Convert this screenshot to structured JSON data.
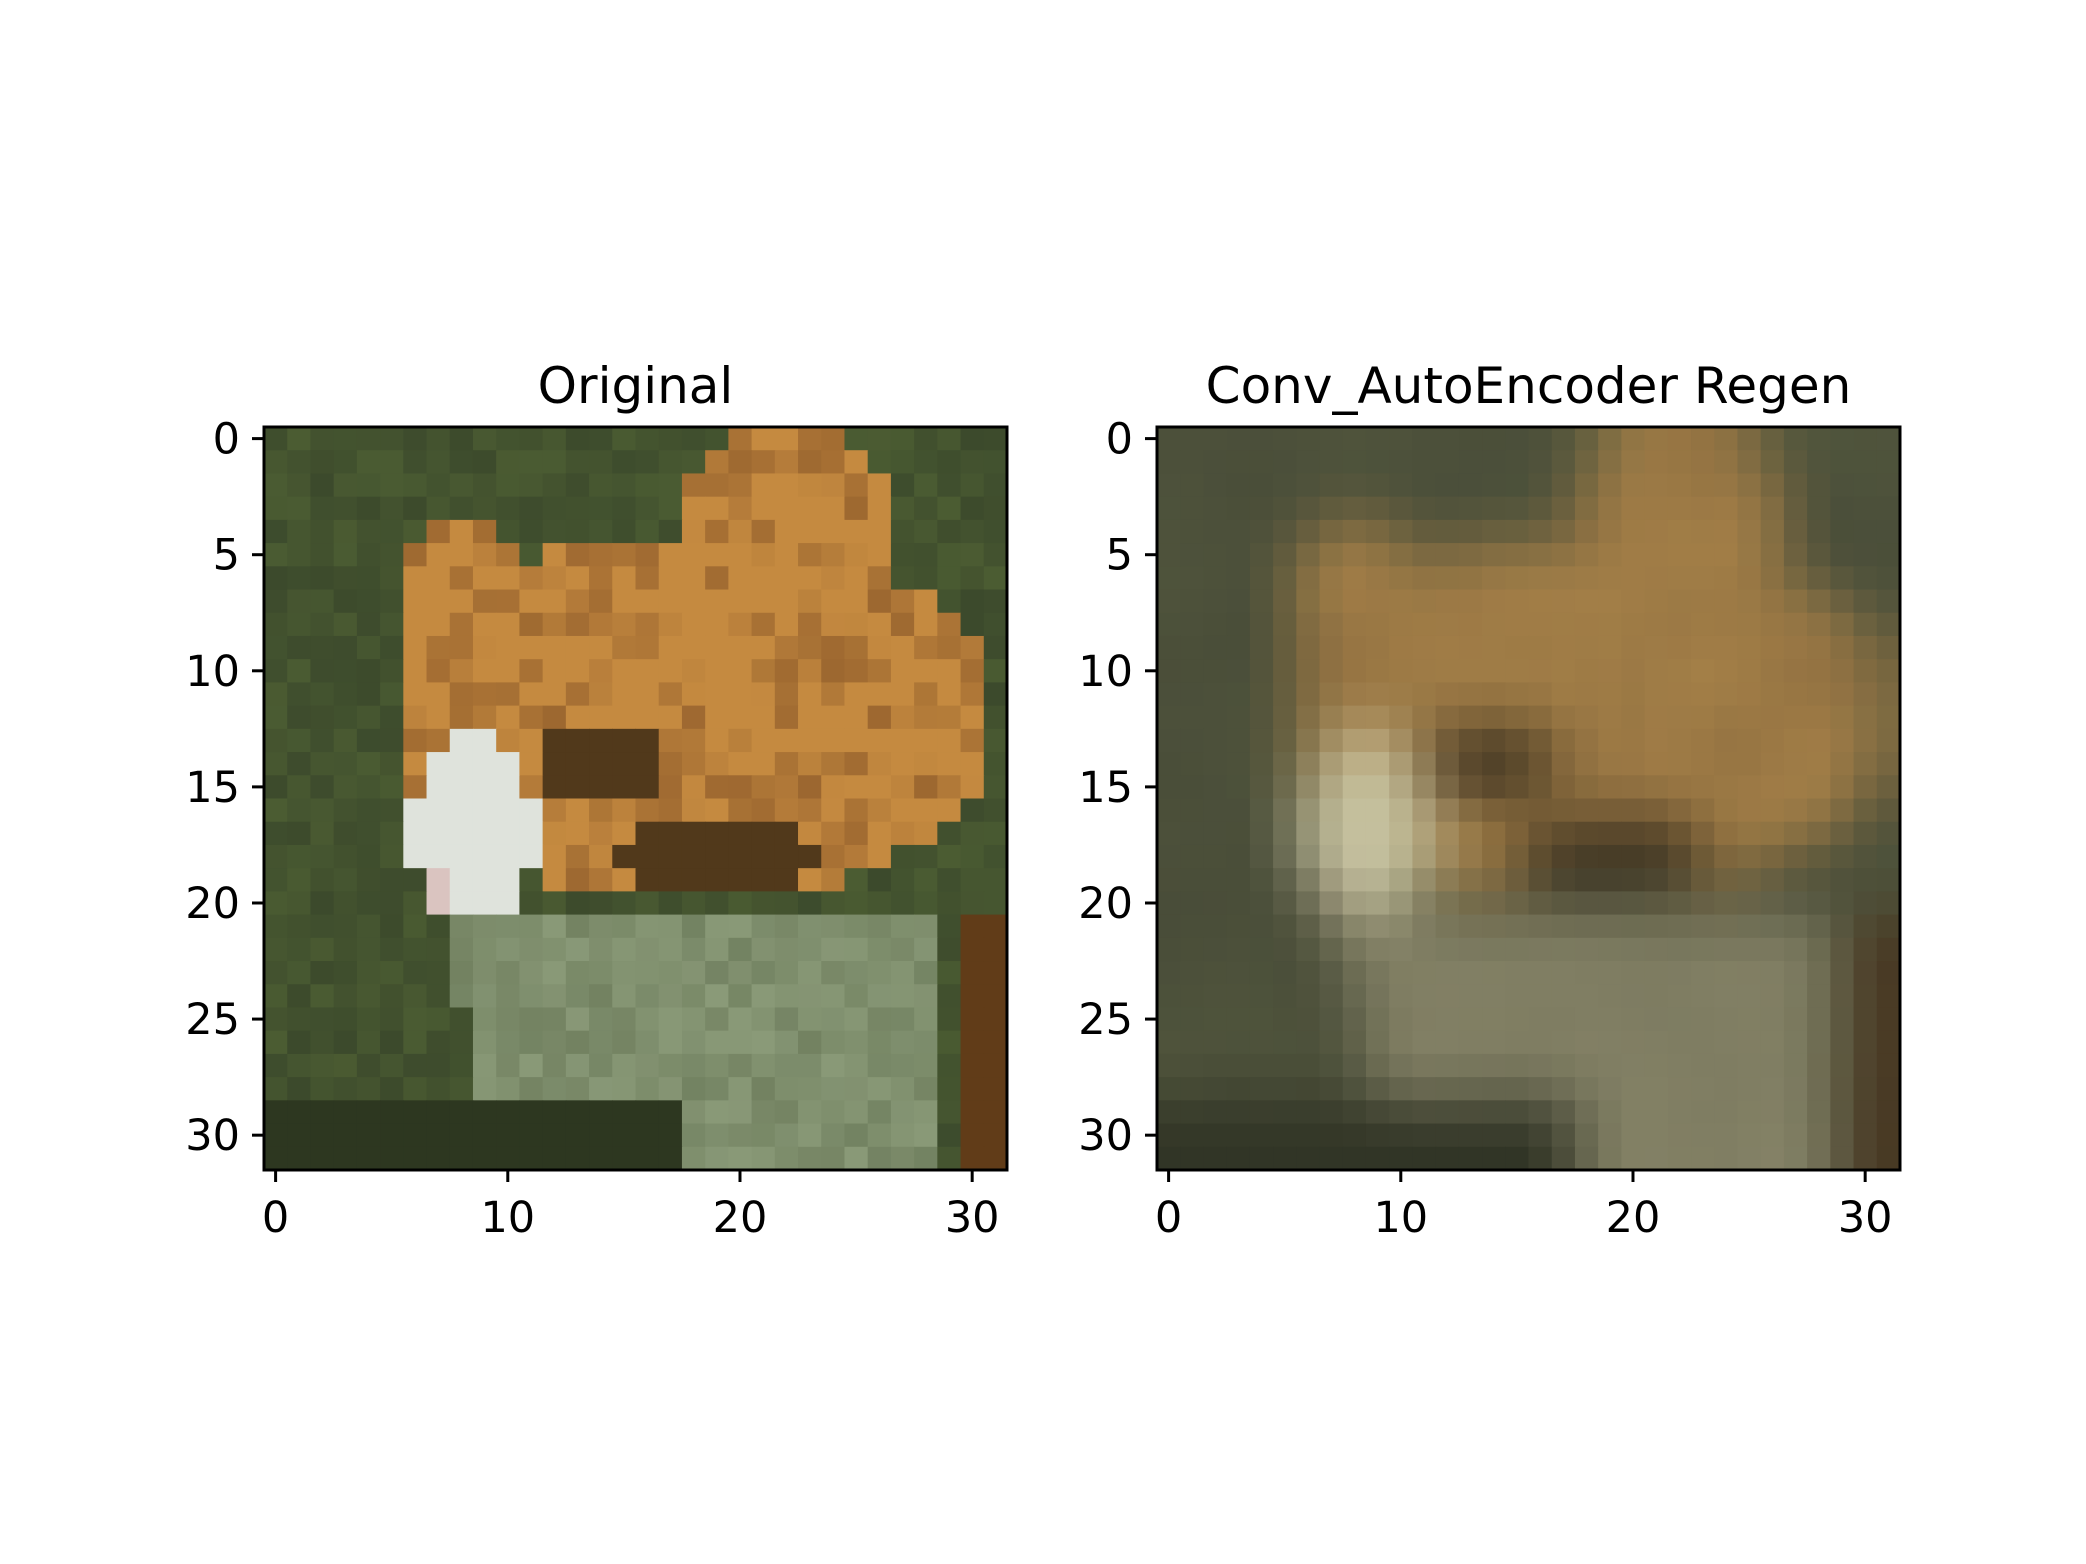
{
  "chart_data": [
    {
      "type": "heatmap",
      "title": "Original",
      "xlabel": "",
      "ylabel": "",
      "xlim": [
        -0.5,
        31.5
      ],
      "ylim": [
        31.5,
        -0.5
      ],
      "x_ticks": [
        0,
        10,
        20,
        30
      ],
      "y_ticks": [
        0,
        5,
        10,
        15,
        20,
        25,
        30
      ],
      "grid": false,
      "image_grid_size": [
        32,
        32
      ],
      "description_palette": {
        "background": "#3c4a2c",
        "fur": "#c58a40",
        "dark_fur": "#7a4a22",
        "white_patch": "#dfe3dc",
        "collar": "#8a9a78"
      }
    },
    {
      "type": "heatmap",
      "title": "Conv_AutoEncoder Regen",
      "xlabel": "",
      "ylabel": "",
      "xlim": [
        -0.5,
        31.5
      ],
      "ylim": [
        31.5,
        -0.5
      ],
      "x_ticks": [
        0,
        10,
        20,
        30
      ],
      "y_ticks": [
        0,
        5,
        10,
        15,
        20,
        25,
        30
      ],
      "grid": false,
      "image_grid_size": [
        32,
        32
      ],
      "description_palette": {
        "background": "#464a36",
        "fur": "#b8863e",
        "dark_fur": "#5b3f28",
        "white_patch": "#cac5a0",
        "collar": "#8e8a6a"
      }
    }
  ]
}
